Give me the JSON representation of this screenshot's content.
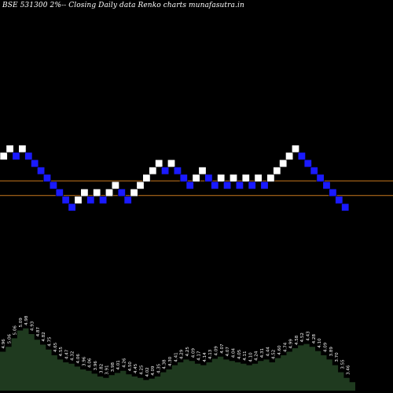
{
  "chart_data": {
    "type": "renko",
    "title": "BSE 531300  2%-- Closing Daily data Renko  charts munafasutra.in",
    "colors": {
      "background": "#000000",
      "up_brick": "#ffffff",
      "down_brick": "#1a1aff",
      "brick_edge": "#000000",
      "reference_lines": "#c8781e",
      "volume_fill": "#1f3a1f",
      "label_text": "#ffffff"
    },
    "bricks": [
      {
        "dir": "up",
        "level": 7
      },
      {
        "dir": "up",
        "level": 8
      },
      {
        "dir": "down",
        "level": 7
      },
      {
        "dir": "up",
        "level": 8
      },
      {
        "dir": "down",
        "level": 7
      },
      {
        "dir": "down",
        "level": 6
      },
      {
        "dir": "down",
        "level": 5
      },
      {
        "dir": "down",
        "level": 4
      },
      {
        "dir": "down",
        "level": 3
      },
      {
        "dir": "down",
        "level": 2
      },
      {
        "dir": "down",
        "level": 1
      },
      {
        "dir": "down",
        "level": 0
      },
      {
        "dir": "up",
        "level": 1
      },
      {
        "dir": "up",
        "level": 2
      },
      {
        "dir": "down",
        "level": 1
      },
      {
        "dir": "up",
        "level": 2
      },
      {
        "dir": "down",
        "level": 1
      },
      {
        "dir": "up",
        "level": 2
      },
      {
        "dir": "up",
        "level": 3
      },
      {
        "dir": "down",
        "level": 2
      },
      {
        "dir": "down",
        "level": 1
      },
      {
        "dir": "up",
        "level": 2
      },
      {
        "dir": "up",
        "level": 3
      },
      {
        "dir": "up",
        "level": 4
      },
      {
        "dir": "up",
        "level": 5
      },
      {
        "dir": "up",
        "level": 6
      },
      {
        "dir": "down",
        "level": 5
      },
      {
        "dir": "up",
        "level": 6
      },
      {
        "dir": "down",
        "level": 5
      },
      {
        "dir": "down",
        "level": 4
      },
      {
        "dir": "down",
        "level": 3
      },
      {
        "dir": "up",
        "level": 4
      },
      {
        "dir": "up",
        "level": 5
      },
      {
        "dir": "down",
        "level": 4
      },
      {
        "dir": "down",
        "level": 3
      },
      {
        "dir": "up",
        "level": 4
      },
      {
        "dir": "down",
        "level": 3
      },
      {
        "dir": "up",
        "level": 4
      },
      {
        "dir": "down",
        "level": 3
      },
      {
        "dir": "up",
        "level": 4
      },
      {
        "dir": "down",
        "level": 3
      },
      {
        "dir": "up",
        "level": 4
      },
      {
        "dir": "down",
        "level": 3
      },
      {
        "dir": "up",
        "level": 4
      },
      {
        "dir": "up",
        "level": 5
      },
      {
        "dir": "up",
        "level": 6
      },
      {
        "dir": "up",
        "level": 7
      },
      {
        "dir": "up",
        "level": 8
      },
      {
        "dir": "down",
        "level": 7
      },
      {
        "dir": "down",
        "level": 6
      },
      {
        "dir": "down",
        "level": 5
      },
      {
        "dir": "down",
        "level": 4
      },
      {
        "dir": "down",
        "level": 3
      },
      {
        "dir": "down",
        "level": 2
      },
      {
        "dir": "down",
        "level": 1
      },
      {
        "dir": "down",
        "level": 0
      }
    ],
    "reference_levels": [
      3.5,
      1.5
    ],
    "price_labels": [
      "4.96",
      "5.06",
      "5.06",
      "5.09",
      "4.98",
      "4.93",
      "4.87",
      "4.82",
      "4.75",
      "4.65",
      "4.55",
      "4.47",
      "4.32",
      "4.06",
      "3.96",
      "4.06",
      "3.96",
      "3.82",
      "3.91",
      "3.98",
      "4.01",
      "4.26",
      "4.50",
      "4.45",
      "4.25",
      "4.02",
      "4.09",
      "4.35",
      "4.38",
      "4.30",
      "4.41",
      "4.29",
      "4.25",
      "4.09",
      "4.17",
      "4.14",
      "4.13",
      "4.09",
      "4.07",
      "4.07",
      "4.04",
      "4.05",
      "4.11",
      "4.10",
      "4.24",
      "4.31",
      "4.44",
      "4.52",
      "4.60",
      "4.74",
      "4.99",
      "4.58",
      "4.52",
      "4.43",
      "4.28",
      "4.10",
      "4.09",
      "3.89",
      "3.70",
      "3.55",
      "3.46"
    ],
    "volume_levels": [
      0.55,
      0.62,
      0.74,
      0.85,
      0.88,
      0.8,
      0.72,
      0.65,
      0.58,
      0.5,
      0.44,
      0.4,
      0.38,
      0.34,
      0.3,
      0.28,
      0.24,
      0.2,
      0.18,
      0.22,
      0.25,
      0.28,
      0.23,
      0.2,
      0.18,
      0.15,
      0.17,
      0.2,
      0.26,
      0.3,
      0.36,
      0.4,
      0.44,
      0.42,
      0.38,
      0.36,
      0.4,
      0.45,
      0.48,
      0.44,
      0.42,
      0.4,
      0.38,
      0.36,
      0.38,
      0.42,
      0.44,
      0.4,
      0.46,
      0.5,
      0.55,
      0.6,
      0.64,
      0.66,
      0.62,
      0.56,
      0.5,
      0.44,
      0.36,
      0.26,
      0.18,
      0.12
    ]
  }
}
